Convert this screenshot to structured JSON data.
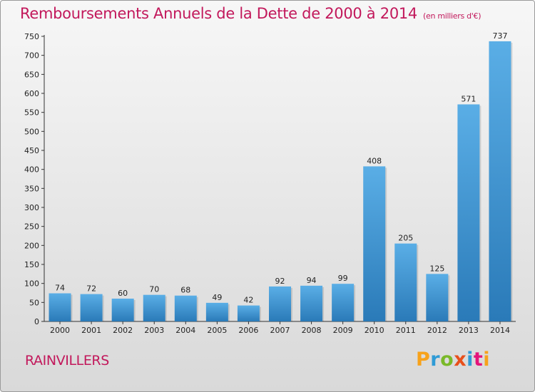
{
  "title": "Remboursements Annuels de la Dette de 2000 à 2014",
  "unit_note": "(en milliers d'€)",
  "commune": "RAINVILLERS",
  "logo": {
    "letters": [
      "P",
      "r",
      "o",
      "x",
      "i",
      "t",
      "i"
    ]
  },
  "colors": {
    "title": "#c2185b",
    "bar_top": "#5aaee6",
    "bar_bottom": "#2a7ab8"
  },
  "chart_data": {
    "type": "bar",
    "categories": [
      "2000",
      "2001",
      "2002",
      "2003",
      "2004",
      "2005",
      "2006",
      "2007",
      "2008",
      "2009",
      "2010",
      "2011",
      "2012",
      "2013",
      "2014"
    ],
    "values": [
      74,
      72,
      60,
      70,
      68,
      49,
      42,
      92,
      94,
      99,
      408,
      205,
      125,
      571,
      737
    ],
    "ylim": [
      0,
      750
    ],
    "yticks": [
      0,
      50,
      100,
      150,
      200,
      250,
      300,
      350,
      400,
      450,
      500,
      550,
      600,
      650,
      700,
      750
    ],
    "grid": false,
    "data_labels": true
  }
}
